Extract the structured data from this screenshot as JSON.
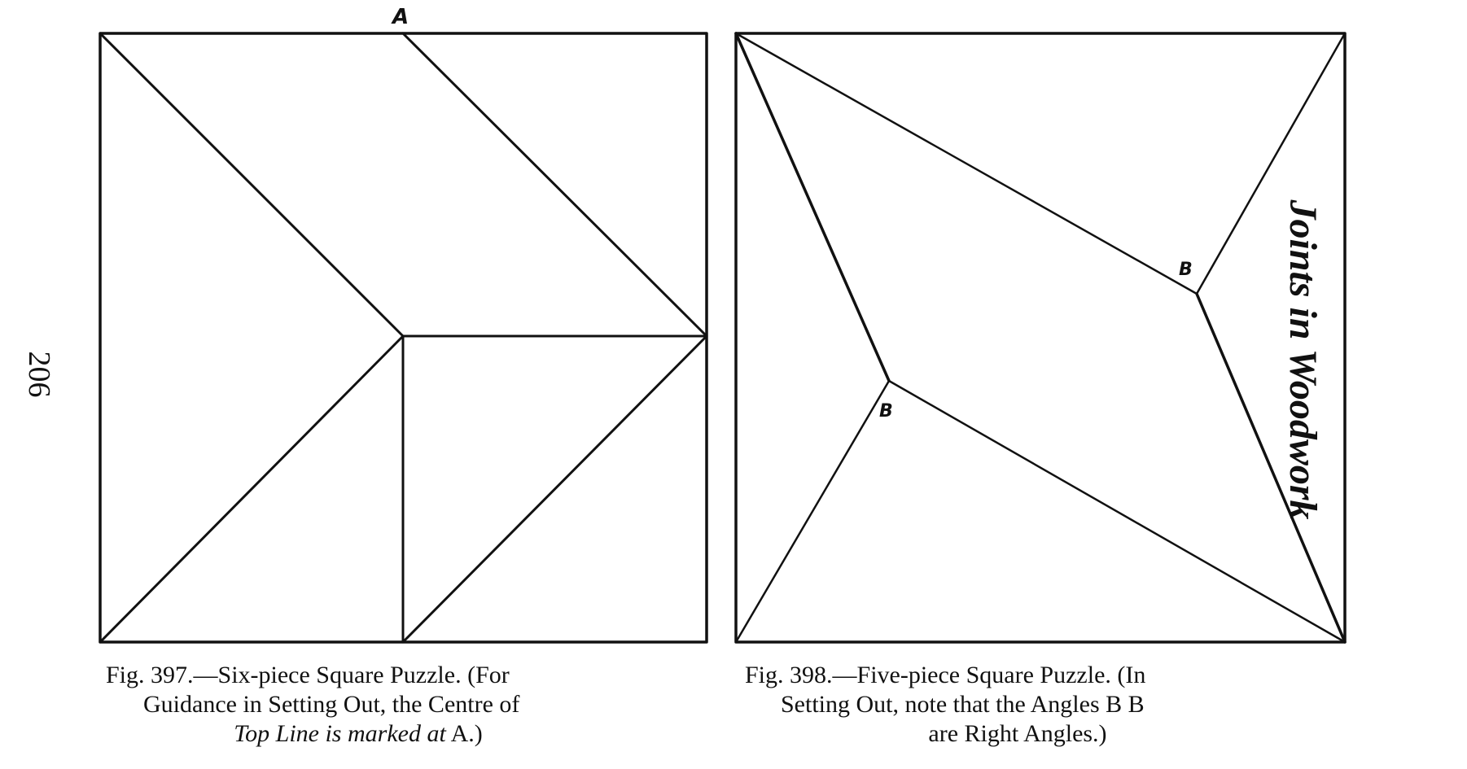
{
  "page": {
    "number": "206",
    "running_head": "Joints in Woodwork"
  },
  "figures": [
    {
      "id": "fig397",
      "point_label": "A",
      "caption": {
        "line1": "Fig. 397.—Six-piece Square Puzzle.   (For",
        "line2": "Guidance in Setting Out,  the Centre of",
        "line3_italic": "Top Line is marked at",
        "line3_end": " A.)"
      }
    },
    {
      "id": "fig398",
      "point_labels": [
        "B",
        "B"
      ],
      "caption": {
        "line1": "Fig. 398.—Five-piece Square Puzzle.   (In",
        "line2": "Setting Out, note that  the  Angles B B",
        "line3": "are Right Angles.)"
      }
    }
  ]
}
